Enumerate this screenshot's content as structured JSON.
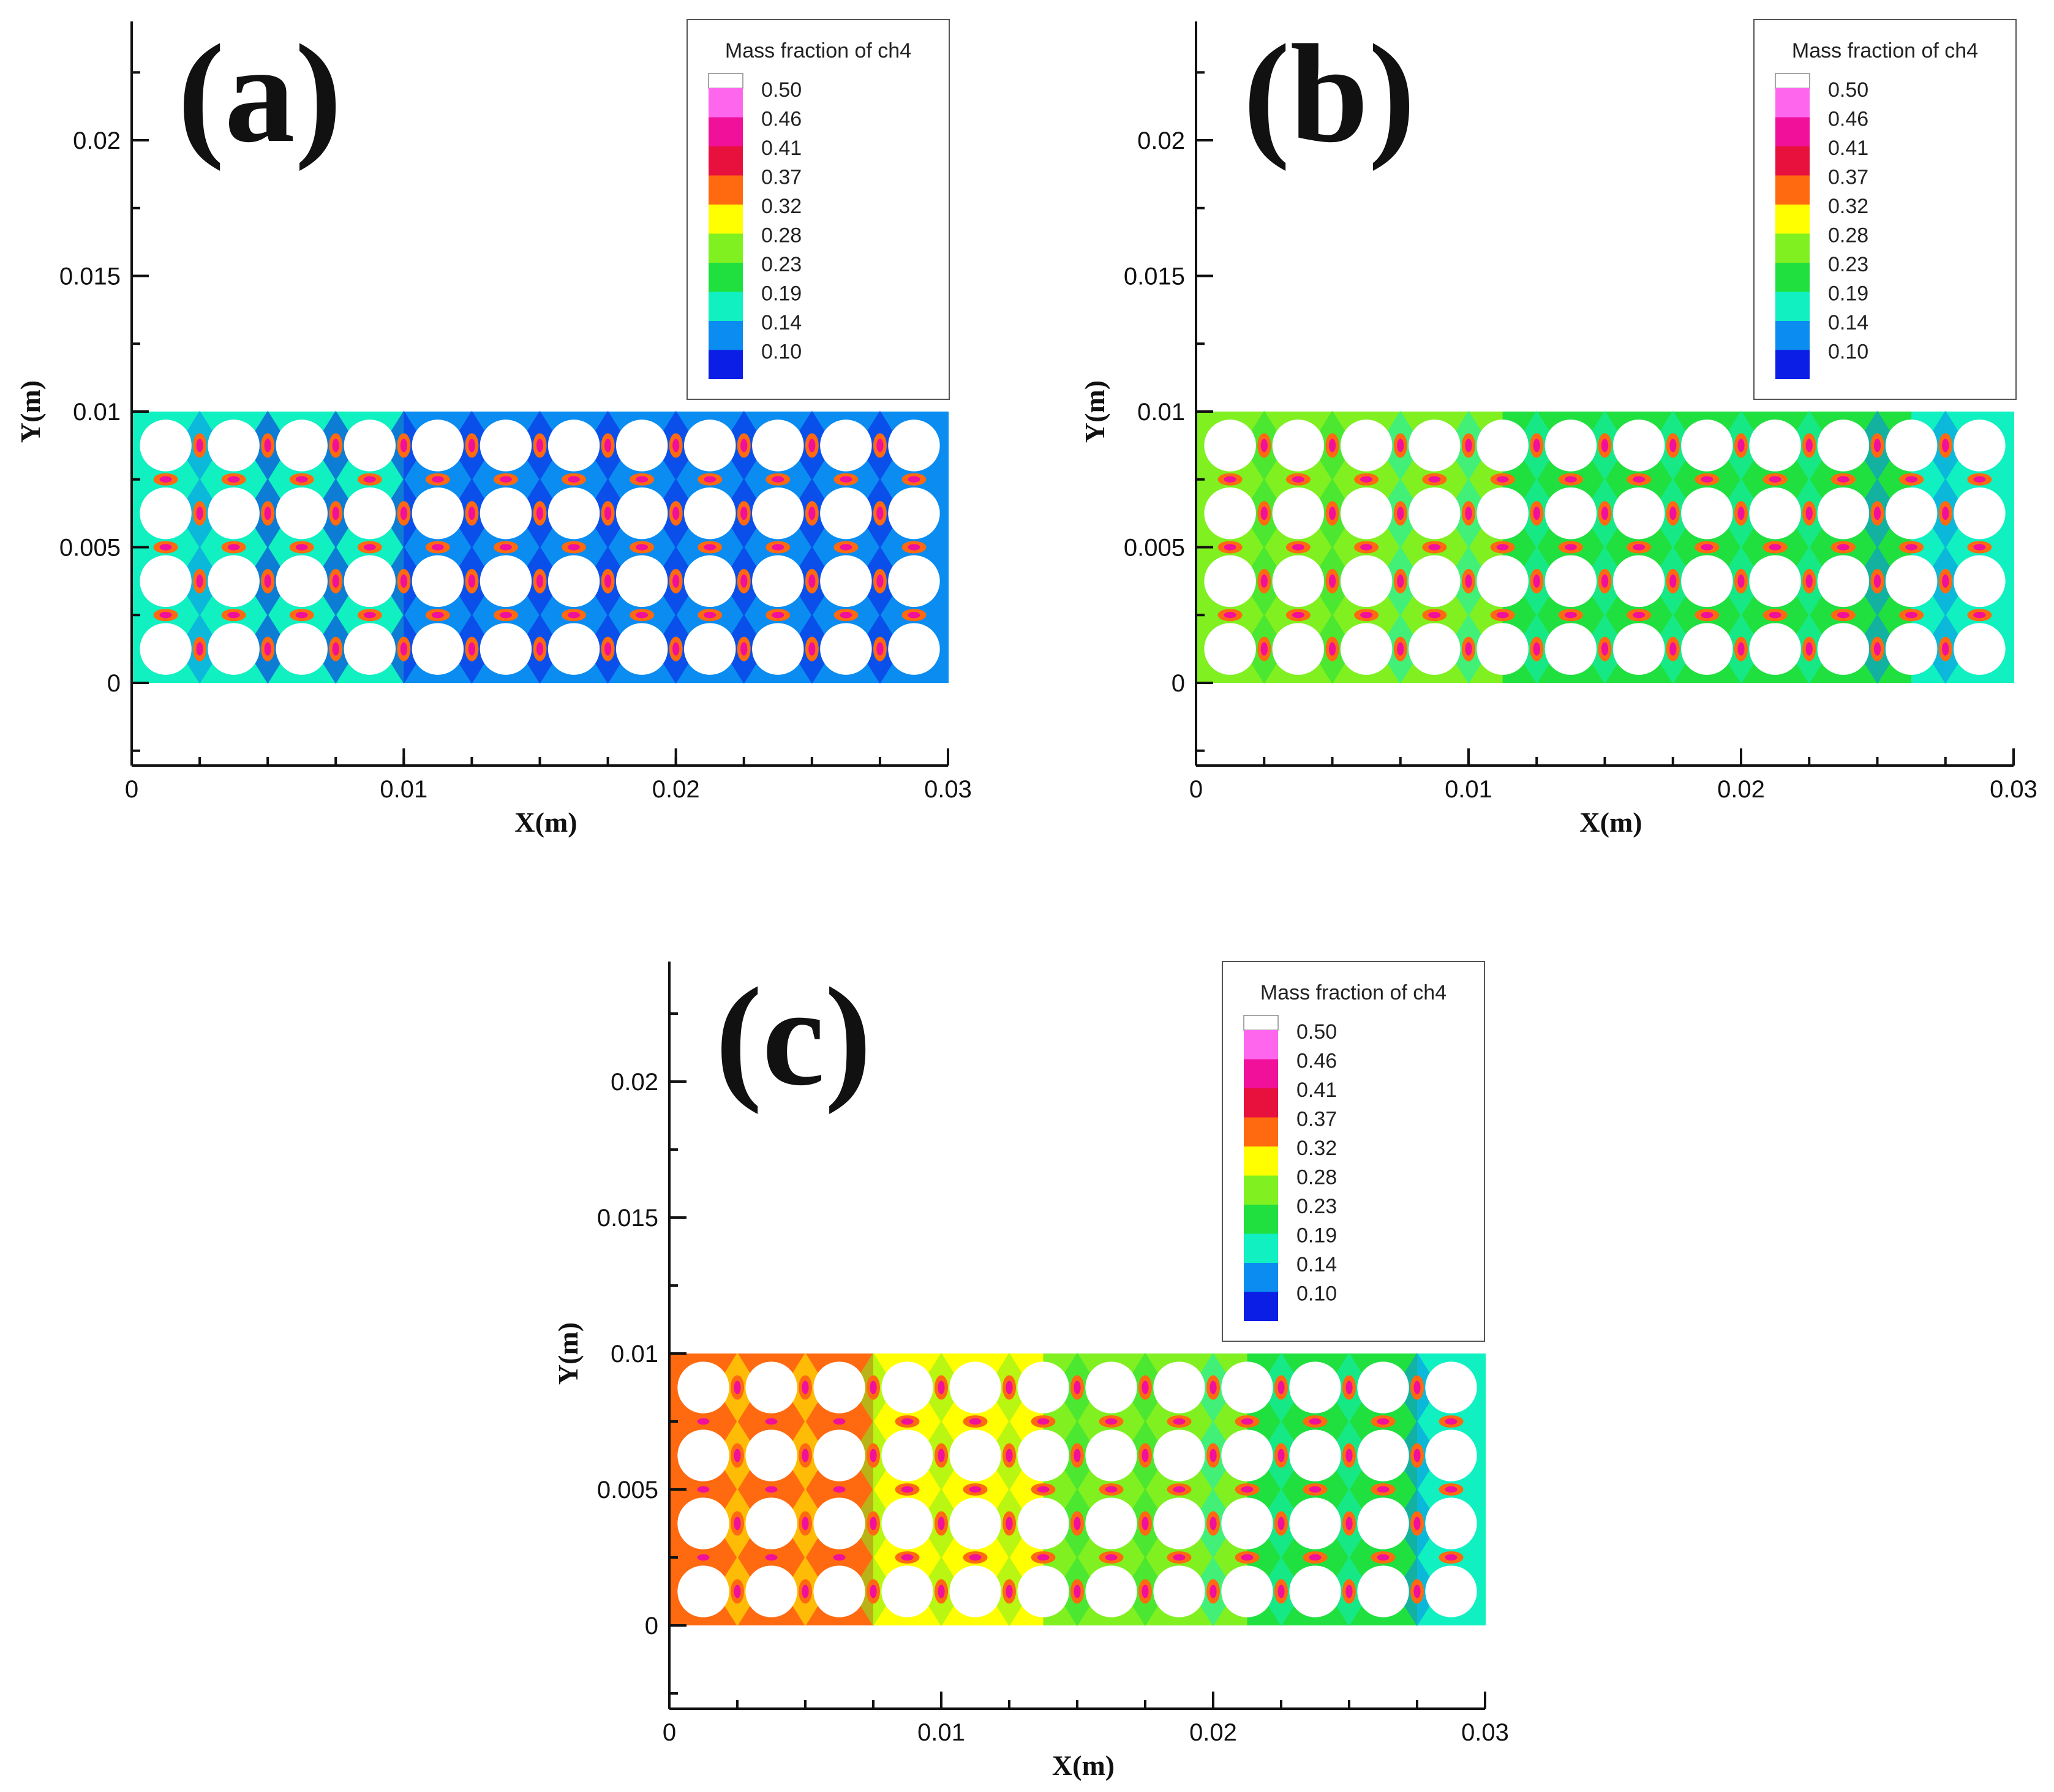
{
  "figure": {
    "panels": [
      "(a)",
      "(b)",
      "(c)"
    ]
  },
  "chart_data": [
    {
      "type": "heatmap",
      "panel_label": "(a)",
      "title": "",
      "xlabel": "X(m)",
      "ylabel": "Y(m)",
      "xlim": [
        0,
        0.03
      ],
      "ylim": [
        -0.003,
        0.024
      ],
      "x_ticks": [
        "0",
        "0.01",
        "0.02",
        "0.03"
      ],
      "y_ticks": [
        "0",
        "0.005",
        "0.01",
        "0.015",
        "0.02"
      ],
      "domain": {
        "x": [
          0,
          0.03
        ],
        "y": [
          0,
          0.01
        ]
      },
      "legend_title": "Mass fraction of ch4",
      "legend_levels": [
        "0.50",
        "0.46",
        "0.41",
        "0.37",
        "0.32",
        "0.28",
        "0.23",
        "0.19",
        "0.14",
        "0.10"
      ],
      "legend_colors": [
        "#ffffff",
        "#ff66ee",
        "#f0109a",
        "#e8103c",
        "#ff6a10",
        "#ffff00",
        "#80f020",
        "#20e040",
        "#10f0c0",
        "#0a8cf0",
        "#0a1ee6"
      ],
      "obstacle_rows": [
        {
          "y": 0.00875,
          "x": [
            0.00125,
            0.00375,
            0.00625,
            0.00875,
            0.01125,
            0.01375,
            0.01625,
            0.01875,
            0.02125,
            0.02375,
            0.02625,
            0.02875
          ]
        },
        {
          "y": 0.00625,
          "x": [
            0.00125,
            0.00375,
            0.00625,
            0.00875,
            0.01125,
            0.01375,
            0.01625,
            0.01875,
            0.02125,
            0.02375,
            0.02625,
            0.02875
          ]
        },
        {
          "y": 0.00375,
          "x": [
            0.00125,
            0.00375,
            0.00625,
            0.00875,
            0.01125,
            0.01375,
            0.01625,
            0.01875,
            0.02125,
            0.02375,
            0.02625,
            0.02875
          ]
        },
        {
          "y": 0.00125,
          "x": [
            0.00125,
            0.00375,
            0.00625,
            0.00875,
            0.01125,
            0.01375,
            0.01625,
            0.01875,
            0.02125,
            0.02375,
            0.02625,
            0.02875
          ]
        }
      ],
      "obstacle_radius": 0.00095,
      "field_level_left": 0.16,
      "field_level_right": 0.1
    },
    {
      "type": "heatmap",
      "panel_label": "(b)",
      "title": "",
      "xlabel": "X(m)",
      "ylabel": "Y(m)",
      "xlim": [
        0,
        0.03
      ],
      "ylim": [
        -0.003,
        0.024
      ],
      "x_ticks": [
        "0",
        "0.01",
        "0.02",
        "0.03"
      ],
      "y_ticks": [
        "0",
        "0.005",
        "0.01",
        "0.015",
        "0.02"
      ],
      "domain": {
        "x": [
          0,
          0.03
        ],
        "y": [
          0,
          0.01
        ]
      },
      "legend_title": "Mass fraction of ch4",
      "legend_levels": [
        "0.50",
        "0.46",
        "0.41",
        "0.37",
        "0.32",
        "0.28",
        "0.23",
        "0.19",
        "0.14",
        "0.10"
      ],
      "legend_colors": [
        "#ffffff",
        "#ff66ee",
        "#f0109a",
        "#e8103c",
        "#ff6a10",
        "#ffff00",
        "#80f020",
        "#20e040",
        "#10f0c0",
        "#0a8cf0",
        "#0a1ee6"
      ],
      "obstacle_rows": [
        {
          "y": 0.00875,
          "x": [
            0.00125,
            0.00375,
            0.00625,
            0.00875,
            0.01125,
            0.01375,
            0.01625,
            0.01875,
            0.02125,
            0.02375,
            0.02625,
            0.02875
          ]
        },
        {
          "y": 0.00625,
          "x": [
            0.00125,
            0.00375,
            0.00625,
            0.00875,
            0.01125,
            0.01375,
            0.01625,
            0.01875,
            0.02125,
            0.02375,
            0.02625,
            0.02875
          ]
        },
        {
          "y": 0.00375,
          "x": [
            0.00125,
            0.00375,
            0.00625,
            0.00875,
            0.01125,
            0.01375,
            0.01625,
            0.01875,
            0.02125,
            0.02375,
            0.02625,
            0.02875
          ]
        },
        {
          "y": 0.00125,
          "x": [
            0.00125,
            0.00375,
            0.00625,
            0.00875,
            0.01125,
            0.01375,
            0.01625,
            0.01875,
            0.02125,
            0.02375,
            0.02625,
            0.02875
          ]
        }
      ],
      "obstacle_radius": 0.00095,
      "field_level_left": 0.26,
      "field_level_right": 0.18
    },
    {
      "type": "heatmap",
      "panel_label": "(c)",
      "title": "",
      "xlabel": "X(m)",
      "ylabel": "Y(m)",
      "xlim": [
        0,
        0.03
      ],
      "ylim": [
        -0.003,
        0.024
      ],
      "x_ticks": [
        "0",
        "0.01",
        "0.02",
        "0.03"
      ],
      "y_ticks": [
        "0",
        "0.005",
        "0.01",
        "0.015",
        "0.02"
      ],
      "domain": {
        "x": [
          0,
          0.03
        ],
        "y": [
          0,
          0.01
        ]
      },
      "legend_title": "Mass fraction of ch4",
      "legend_levels": [
        "0.50",
        "0.46",
        "0.41",
        "0.37",
        "0.32",
        "0.28",
        "0.23",
        "0.19",
        "0.14",
        "0.10"
      ],
      "legend_colors": [
        "#ffffff",
        "#ff66ee",
        "#f0109a",
        "#e8103c",
        "#ff6a10",
        "#ffff00",
        "#80f020",
        "#20e040",
        "#10f0c0",
        "#0a8cf0",
        "#0a1ee6"
      ],
      "obstacle_rows": [
        {
          "y": 0.00875,
          "x": [
            0.00125,
            0.00375,
            0.00625,
            0.00875,
            0.01125,
            0.01375,
            0.01625,
            0.01875,
            0.02125,
            0.02375,
            0.02625,
            0.02875
          ]
        },
        {
          "y": 0.00625,
          "x": [
            0.00125,
            0.00375,
            0.00625,
            0.00875,
            0.01125,
            0.01375,
            0.01625,
            0.01875,
            0.02125,
            0.02375,
            0.02625,
            0.02875
          ]
        },
        {
          "y": 0.00375,
          "x": [
            0.00125,
            0.00375,
            0.00625,
            0.00875,
            0.01125,
            0.01375,
            0.01625,
            0.01875,
            0.02125,
            0.02375,
            0.02625,
            0.02875
          ]
        },
        {
          "y": 0.00125,
          "x": [
            0.00125,
            0.00375,
            0.00625,
            0.00875,
            0.01125,
            0.01375,
            0.01625,
            0.01875,
            0.02125,
            0.02375,
            0.02625,
            0.02875
          ]
        }
      ],
      "obstacle_radius": 0.00095,
      "field_level_left": 0.36,
      "field_level_right": 0.18
    }
  ]
}
